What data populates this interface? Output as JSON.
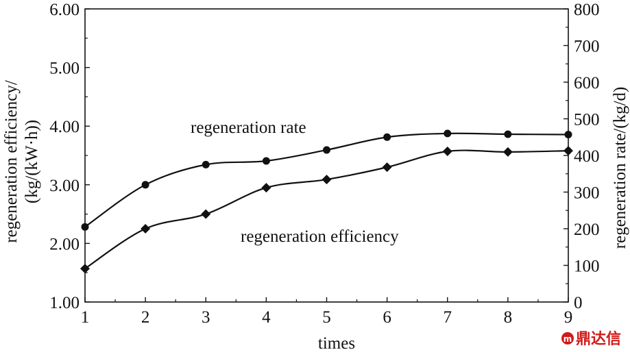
{
  "chart_data": {
    "type": "line",
    "x": [
      1,
      2,
      3,
      4,
      5,
      6,
      7,
      8,
      9
    ],
    "xlabel": "times",
    "xlim": [
      1,
      9
    ],
    "x_ticks": [
      "1",
      "2",
      "3",
      "4",
      "5",
      "6",
      "7",
      "8",
      "9"
    ],
    "ylabel_left": [
      "regeneration efficiency/",
      "(kg/(kW·h))"
    ],
    "ylim_left": [
      1.0,
      6.0
    ],
    "y_left_ticks": [
      "1.00",
      "2.00",
      "3.00",
      "4.00",
      "5.00",
      "6.00"
    ],
    "ylabel_right": "regeneration rate/(kg/d)",
    "ylim_right": [
      0,
      800
    ],
    "y_right_ticks": [
      "0",
      "100",
      "200",
      "300",
      "400",
      "500",
      "600",
      "700",
      "800"
    ],
    "grid": false,
    "series": [
      {
        "name": "regeneration rate",
        "axis": "right",
        "marker": "circle",
        "values": [
          205,
          320,
          375,
          385,
          415,
          450,
          460,
          458,
          457
        ]
      },
      {
        "name": "regeneration efficiency",
        "axis": "left",
        "marker": "diamond",
        "values": [
          1.57,
          2.25,
          2.5,
          2.95,
          3.09,
          3.3,
          3.57,
          3.56,
          3.58
        ]
      }
    ]
  },
  "watermark": {
    "text": "鼎达信",
    "color": "#d11a1a"
  }
}
